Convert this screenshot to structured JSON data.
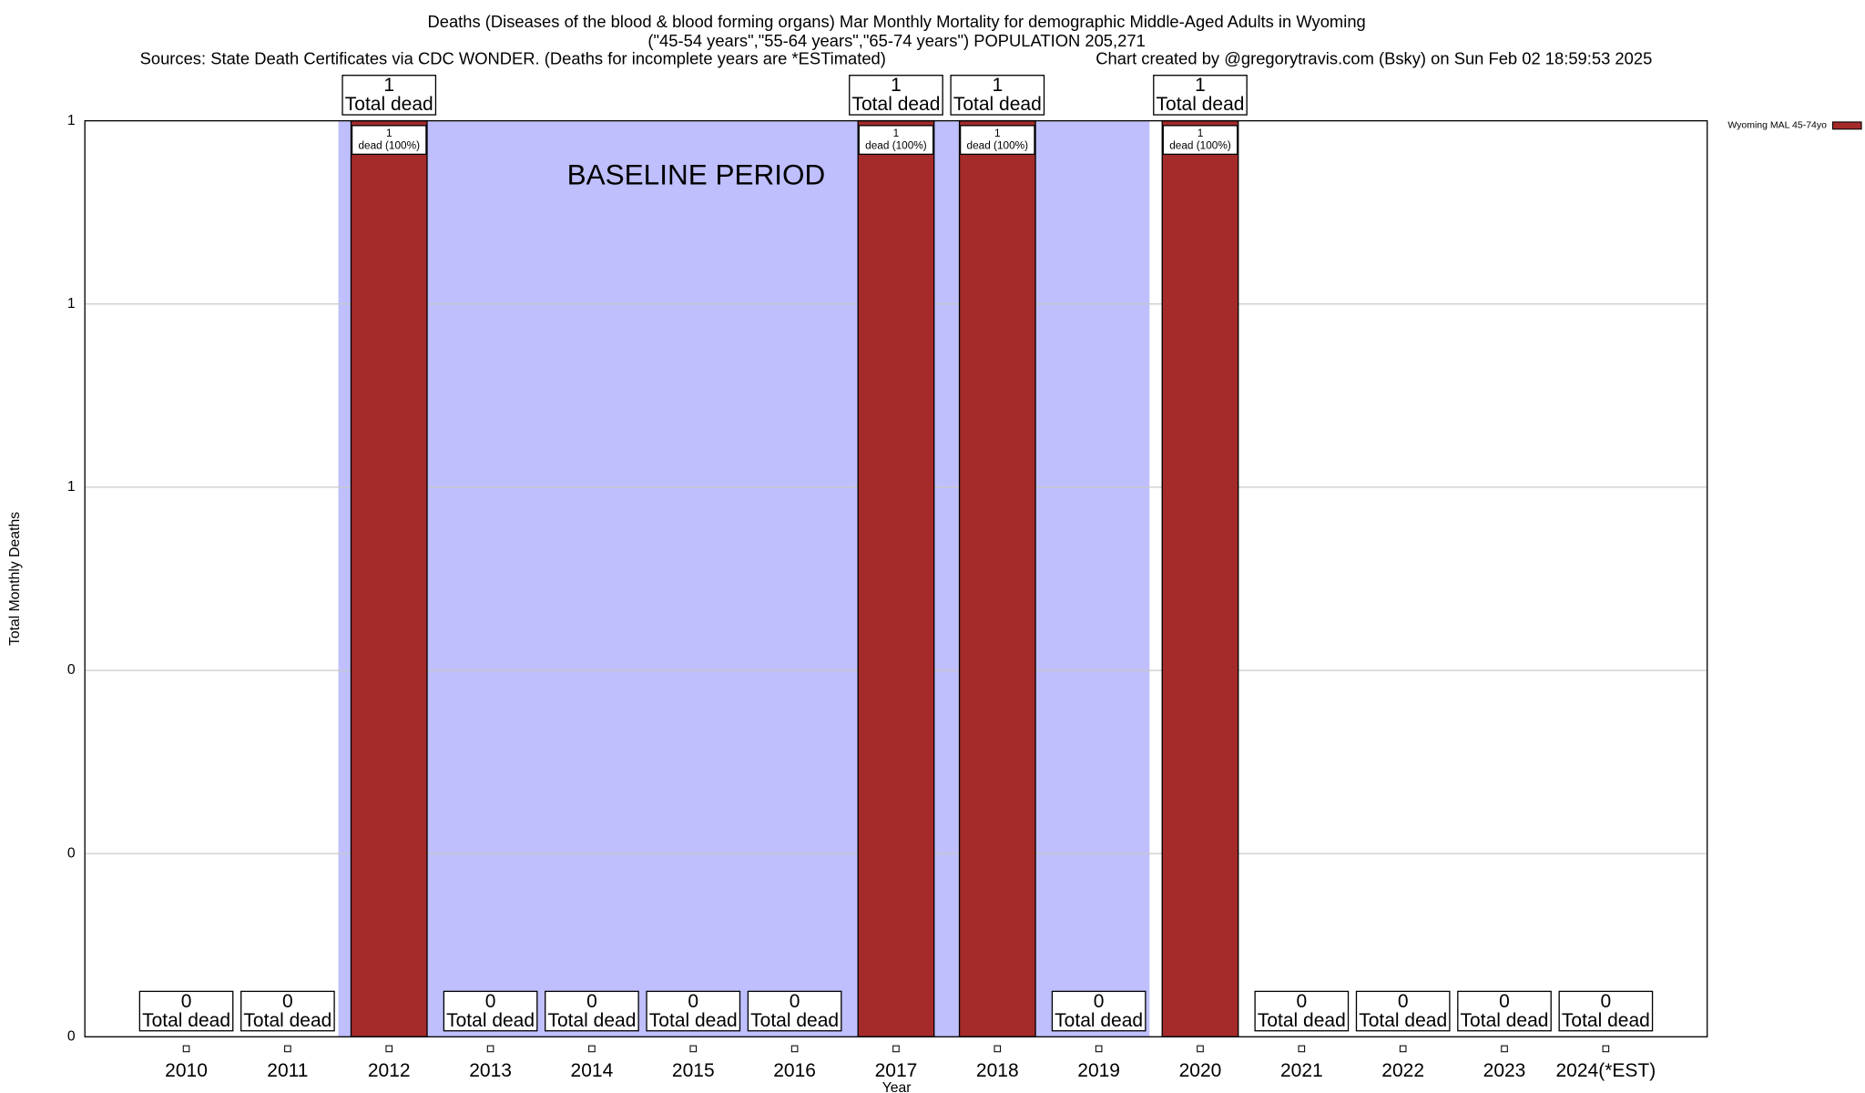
{
  "chart_data": {
    "type": "bar",
    "title": "Deaths (Diseases of the blood & blood forming organs) Mar Monthly Mortality for demographic Middle-Aged Adults in Wyoming",
    "subtitle": "(\"45-54 years\",\"55-64 years\",\"65-74 years\") POPULATION 205,271",
    "source": "Sources: State Death Certificates via CDC WONDER. (Deaths for incomplete years are *ESTimated)",
    "credit": "Chart created by @gregorytravis.com (Bsky) on Sun Feb 02 18:59:53 2025",
    "x_label": "Year",
    "y_label": "Total Monthly Deaths",
    "categories": [
      "2010",
      "2011",
      "2012",
      "2013",
      "2014",
      "2015",
      "2016",
      "2017",
      "2018",
      "2019",
      "2020",
      "2021",
      "2022",
      "2023",
      "2024(*EST)"
    ],
    "series": [
      {
        "name": "Wyoming MAL 45-74yo",
        "color": "#a52a2a",
        "values": [
          0,
          0,
          1,
          0,
          0,
          0,
          0,
          1,
          1,
          0,
          1,
          0,
          0,
          0,
          0
        ]
      }
    ],
    "total_label": "Total dead",
    "inner_label": "dead (100%)",
    "baseline_label": "BASELINE PERIOD",
    "baseline_start": "2012",
    "baseline_end": "2019",
    "baseline_color": "#bfbffd",
    "ylim": [
      0,
      1
    ],
    "yticks": [
      0,
      {
        "value": 0.2,
        "label": "0"
      },
      {
        "value": 0.4,
        "label": "0"
      },
      {
        "value": 0.6,
        "label": "1"
      },
      {
        "value": 0.8,
        "label": "1"
      },
      1
    ],
    "grid": true,
    "legend": "top-right"
  }
}
